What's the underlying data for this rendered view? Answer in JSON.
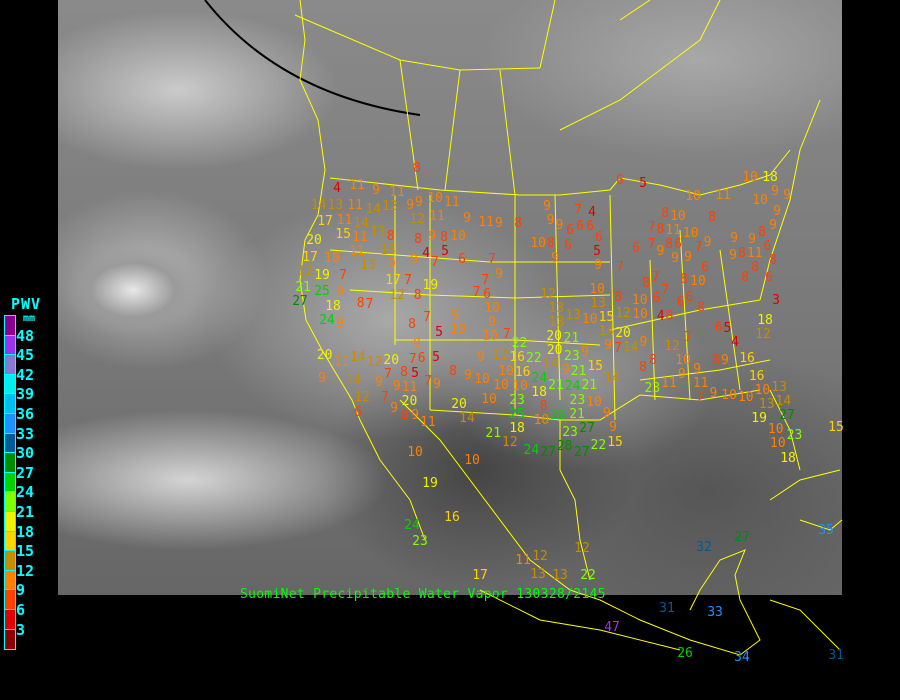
{
  "caption": "SuomiNet Precipitable Water Vapor 130328/2145",
  "legend": {
    "title": "PWV",
    "unit": "mm",
    "labels": [
      "48",
      "45",
      "42",
      "39",
      "36",
      "33",
      "30",
      "27",
      "24",
      "21",
      "18",
      "15",
      "12",
      "9",
      "6",
      "3"
    ],
    "colors": [
      "#8c0090",
      "#9a32f0",
      "#8a78d0",
      "#00f0f0",
      "#00bff0",
      "#1e90ff",
      "#005a96",
      "#008c00",
      "#00d200",
      "#80ff00",
      "#f0f000",
      "#ffd200",
      "#c88c00",
      "#ff8000",
      "#ff4000",
      "#e00000",
      "#8c0000"
    ]
  },
  "map_colors": {
    "border": "#ffff00",
    "orbit_track": "#000000",
    "background": "#000000"
  },
  "stations": [
    8,
    4,
    11,
    9,
    11,
    9,
    10,
    11,
    13,
    11,
    14,
    12,
    9,
    12,
    11,
    9,
    11,
    9,
    8,
    17,
    11,
    14,
    13,
    15,
    20,
    11,
    8,
    8,
    9,
    8,
    10,
    8,
    11,
    13,
    4,
    5,
    10,
    17,
    13,
    9,
    9,
    7,
    6,
    7,
    12,
    19,
    7,
    9,
    17,
    7,
    19,
    7,
    21,
    25,
    9,
    12,
    8,
    7,
    6,
    18,
    8,
    10,
    6,
    5,
    10,
    11,
    10,
    18,
    10,
    9,
    9,
    9,
    7,
    4,
    8,
    9,
    8,
    9,
    9,
    6,
    6,
    6,
    7,
    8,
    11,
    10,
    10,
    9,
    8,
    10,
    6,
    6,
    5,
    6,
    7,
    8,
    6,
    9,
    9,
    7,
    9,
    9,
    6,
    11,
    9,
    9,
    7,
    9,
    9,
    9,
    8,
    8,
    8,
    6,
    8,
    6,
    8,
    7,
    8,
    10,
    12,
    10,
    8,
    7,
    6,
    6,
    6,
    8,
    3,
    10,
    8,
    7,
    7,
    9,
    8,
    5,
    10,
    9,
    10,
    7,
    9,
    9,
    6,
    5,
    9,
    12,
    16,
    14,
    11,
    14,
    12,
    20,
    20,
    9,
    7,
    8,
    7,
    8,
    9,
    10,
    10,
    16,
    18,
    14,
    9,
    9,
    5,
    7,
    9,
    10,
    11,
    10,
    10,
    12,
    7,
    20,
    6,
    9,
    8,
    9,
    20,
    8,
    11,
    14,
    23,
    10,
    21,
    12,
    13,
    13,
    13,
    10,
    15,
    13,
    12,
    10,
    4,
    6,
    5,
    18,
    14,
    20,
    21,
    20,
    9,
    7,
    14,
    9,
    7,
    4,
    12,
    22,
    20,
    23,
    9,
    12,
    8,
    8,
    9,
    16,
    22,
    9,
    21,
    15,
    8,
    9,
    10,
    9,
    11,
    16,
    24,
    21,
    21,
    14,
    23,
    24,
    23,
    10,
    11,
    9,
    7,
    10,
    10,
    10,
    13,
    13,
    14,
    25,
    26,
    21,
    9,
    19,
    27,
    27,
    23,
    9,
    10,
    10,
    23,
    24,
    27,
    28,
    27,
    22,
    15,
    18,
    19,
    16,
    10,
    10,
    11,
    12,
    13,
    24,
    23,
    17,
    14,
    18,
    47,
    26,
    34,
    31,
    33,
    27,
    32,
    35,
    31,
    12,
    15,
    13,
    22,
    27,
    24
  ]
}
